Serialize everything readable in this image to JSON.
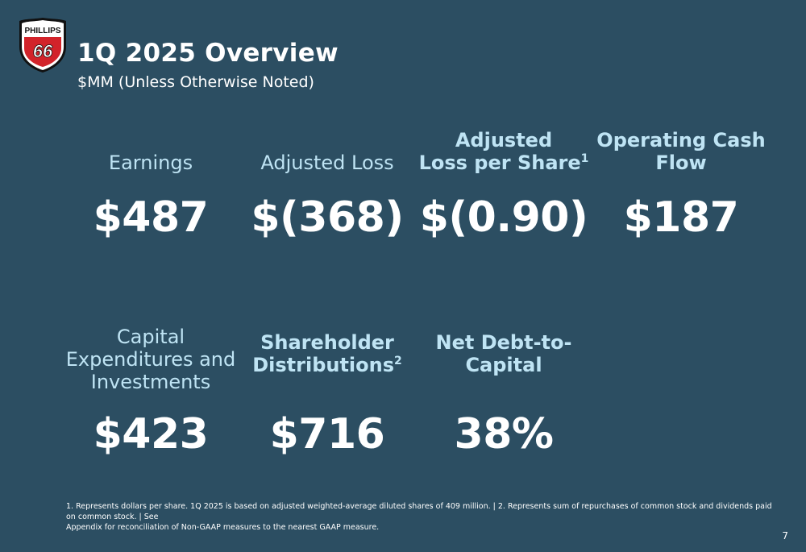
{
  "logo": {
    "top_text": "PHILLIPS",
    "number": "66"
  },
  "title": "1Q 2025 Overview",
  "subtitle": "$MM (Unless Otherwise Noted)",
  "metrics_row1": [
    {
      "label": "Earnings",
      "value": "$487"
    },
    {
      "label": "Adjusted Loss",
      "value": "$(368)"
    },
    {
      "label_line1": "Adjusted",
      "label_line2": "Loss per Share",
      "sup": "1",
      "value": "$(0.90)"
    },
    {
      "label_line1": "Operating Cash",
      "label_line2": "Flow",
      "value": "$187"
    }
  ],
  "metrics_row2": [
    {
      "label_line1": "Capital",
      "label_line2": "Expenditures and",
      "label_line3": "Investments",
      "value": "$423"
    },
    {
      "label_line1": "Shareholder",
      "label_line2": "Distributions",
      "sup": "2",
      "value": "$716"
    },
    {
      "label_line1": "Net Debt-to-",
      "label_line2": "Capital",
      "value": "38%"
    }
  ],
  "footnote_line1": "1. Represents dollars per share. 1Q 2025 is based on adjusted weighted-average diluted shares of 409 million. | 2. Represents sum of repurchases of common stock and dividends paid on common stock. | See",
  "footnote_line2": "Appendix for reconciliation of Non-GAAP measures to the nearest GAAP measure.",
  "page_number": "7",
  "colors": {
    "background": "#2c4e62",
    "label": "#bfe4f4",
    "logo_red": "#d2232a"
  }
}
